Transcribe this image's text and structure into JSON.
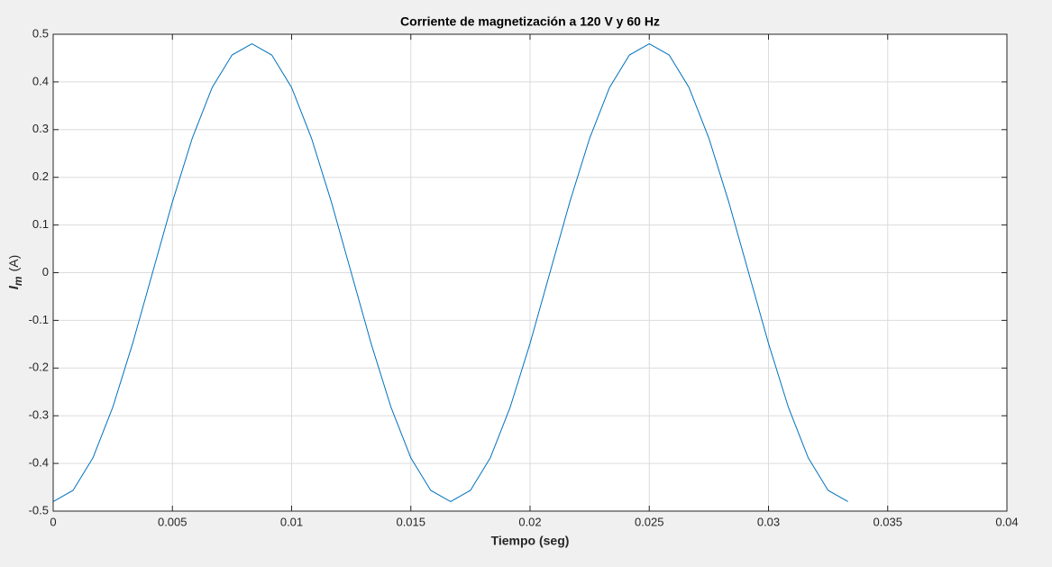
{
  "chart_data": {
    "type": "line",
    "title": "Corriente de magnetización a 120 V y 60 Hz",
    "xlabel": "Tiempo (seg)",
    "ylabel": {
      "symbol": "I",
      "subscript": "m",
      "unit": "(A)"
    },
    "x": [
      0,
      0.000833,
      0.001667,
      0.0025,
      0.003333,
      0.004167,
      0.005,
      0.005833,
      0.006667,
      0.0075,
      0.008333,
      0.009167,
      0.01,
      0.010833,
      0.011667,
      0.0125,
      0.013333,
      0.014167,
      0.015,
      0.015833,
      0.016667,
      0.0175,
      0.018333,
      0.019167,
      0.02,
      0.020833,
      0.021667,
      0.0225,
      0.023333,
      0.024167,
      0.025,
      0.025833,
      0.026667,
      0.0275,
      0.028333,
      0.029167,
      0.03,
      0.030833,
      0.031667,
      0.0325,
      0.033333
    ],
    "series": [
      {
        "color": "#0072bd",
        "values": [
          -0.48,
          -0.4565,
          -0.3883,
          -0.2821,
          -0.1483,
          0,
          0.1483,
          0.2821,
          0.3883,
          0.4565,
          0.48,
          0.4565,
          0.3883,
          0.2821,
          0.1483,
          0,
          -0.1483,
          -0.2821,
          -0.3883,
          -0.4565,
          -0.48,
          -0.4565,
          -0.3883,
          -0.2821,
          -0.1483,
          0,
          0.1483,
          0.2821,
          0.3883,
          0.4565,
          0.48,
          0.4565,
          0.3883,
          0.2821,
          0.1483,
          0,
          -0.1483,
          -0.2821,
          -0.3883,
          -0.4565,
          -0.48
        ]
      }
    ],
    "xlim": [
      0,
      0.04
    ],
    "xticks": [
      0,
      0.005,
      0.01,
      0.015,
      0.02,
      0.025,
      0.03,
      0.035,
      0.04
    ],
    "ylim": [
      -0.5,
      0.5
    ],
    "yticks": [
      -0.5,
      -0.4,
      -0.3,
      -0.2,
      -0.1,
      0,
      0.1,
      0.2,
      0.3,
      0.4,
      0.5
    ],
    "grid": true
  }
}
